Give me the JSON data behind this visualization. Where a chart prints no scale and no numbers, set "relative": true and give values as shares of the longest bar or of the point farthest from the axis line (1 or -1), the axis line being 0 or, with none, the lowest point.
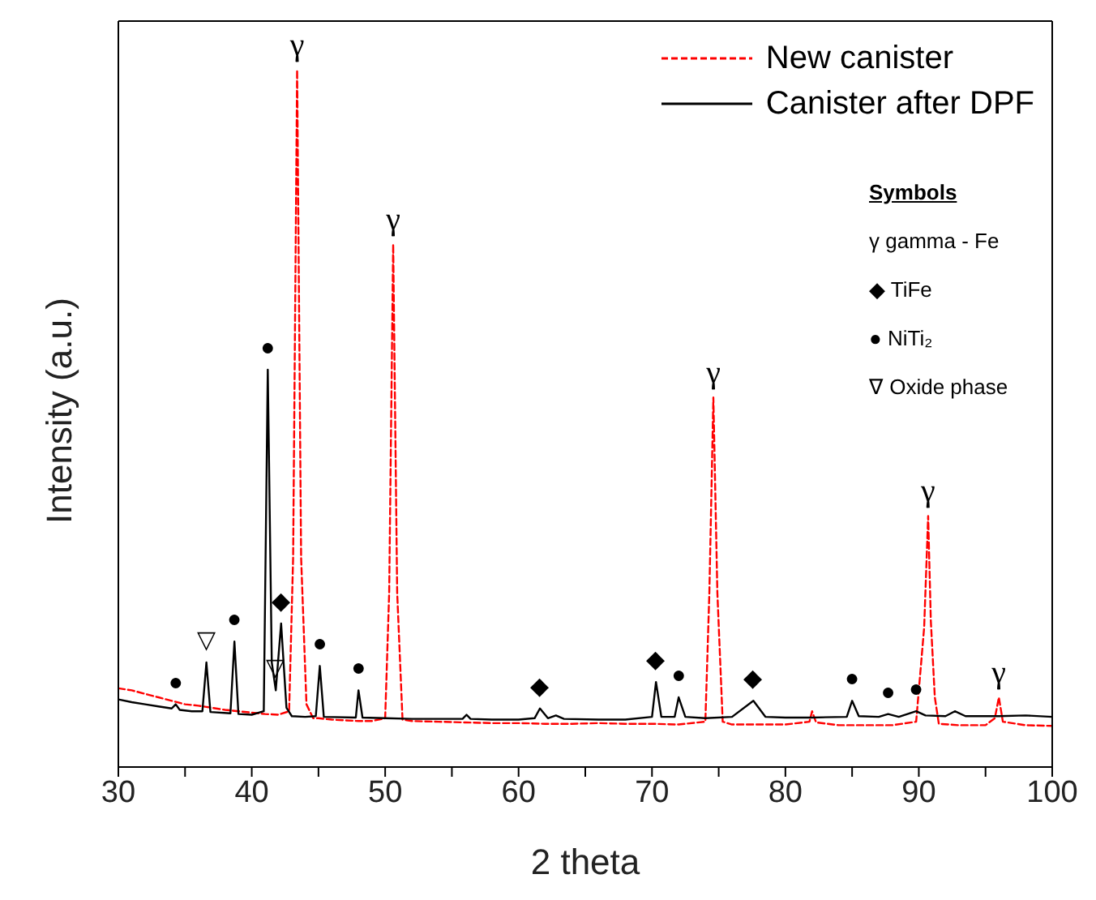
{
  "chart_data": {
    "type": "line",
    "relative": true,
    "xlabel": "2 theta",
    "ylabel": "Intensity (a.u.)",
    "xlim": [
      30,
      100
    ],
    "xticks": [
      30,
      {
        "value": 35,
        "label": null
      },
      40,
      {
        "value": 45,
        "label": null
      },
      50,
      {
        "value": 55,
        "label": null
      },
      60,
      {
        "value": 65,
        "label": null
      },
      70,
      {
        "value": 75,
        "label": null
      },
      80,
      {
        "value": 85,
        "label": null
      },
      90,
      {
        "value": 95,
        "label": null
      },
      100
    ],
    "legend": "top right",
    "marker": "none",
    "series": [
      {
        "name": "New canister",
        "color": "#ff0000",
        "line_style": "dashed",
        "x": [
          30,
          31,
          32,
          33,
          34,
          35,
          36,
          37,
          38,
          39,
          40,
          41,
          42,
          42.8,
          43.1,
          43.4,
          43.7,
          44.1,
          44.6,
          45,
          46,
          47,
          48,
          49,
          50,
          50.3,
          50.6,
          50.9,
          51.3,
          52,
          54,
          56,
          58,
          60,
          62,
          64,
          66,
          68,
          70,
          72,
          74,
          74.3,
          74.6,
          74.9,
          75.3,
          76,
          78,
          80,
          81.8,
          82,
          82.3,
          84,
          86,
          88,
          89.8,
          90.4,
          90.7,
          90.9,
          91.2,
          91.5,
          93,
          95,
          95.7,
          96.0,
          96.3,
          98,
          100
        ],
        "values": [
          0.113,
          0.11,
          0.105,
          0.1,
          0.095,
          0.09,
          0.088,
          0.085,
          0.082,
          0.08,
          0.078,
          0.076,
          0.075,
          0.08,
          0.3,
          1.0,
          0.3,
          0.09,
          0.07,
          0.07,
          0.068,
          0.067,
          0.066,
          0.066,
          0.07,
          0.25,
          0.75,
          0.25,
          0.068,
          0.066,
          0.065,
          0.064,
          0.063,
          0.063,
          0.062,
          0.062,
          0.063,
          0.062,
          0.062,
          0.061,
          0.065,
          0.25,
          0.53,
          0.25,
          0.065,
          0.061,
          0.061,
          0.061,
          0.065,
          0.08,
          0.064,
          0.06,
          0.06,
          0.06,
          0.065,
          0.2,
          0.36,
          0.21,
          0.1,
          0.062,
          0.06,
          0.06,
          0.07,
          0.1,
          0.065,
          0.06,
          0.059
        ]
      },
      {
        "name": "Canister after DPF",
        "color": "#000000",
        "line_style": "solid",
        "x": [
          30,
          31,
          32,
          33,
          34,
          34.3,
          34.6,
          35.5,
          36.3,
          36.6,
          36.9,
          38.4,
          38.7,
          39,
          40,
          40.9,
          41.2,
          41.5,
          41.8,
          42.2,
          42.6,
          43,
          44,
          44.8,
          45.1,
          45.4,
          47.8,
          48.0,
          48.3,
          50,
          52,
          55.8,
          56.1,
          56.4,
          58,
          60,
          61.2,
          61.6,
          62.2,
          62.8,
          63.4,
          66,
          68,
          70,
          70.3,
          70.7,
          71.7,
          72.0,
          72.5,
          74,
          76,
          77.6,
          78.5,
          80,
          82,
          84.6,
          85,
          85.5,
          87,
          87.7,
          88.5,
          89.8,
          90.5,
          92,
          92.7,
          93.5,
          96,
          98,
          100
        ],
        "values": [
          0.097,
          0.093,
          0.09,
          0.087,
          0.084,
          0.09,
          0.082,
          0.08,
          0.08,
          0.15,
          0.079,
          0.077,
          0.18,
          0.076,
          0.075,
          0.08,
          0.57,
          0.15,
          0.11,
          0.206,
          0.085,
          0.073,
          0.072,
          0.073,
          0.145,
          0.072,
          0.071,
          0.11,
          0.071,
          0.07,
          0.069,
          0.069,
          0.075,
          0.069,
          0.068,
          0.068,
          0.07,
          0.084,
          0.07,
          0.074,
          0.069,
          0.068,
          0.068,
          0.072,
          0.122,
          0.072,
          0.072,
          0.1,
          0.072,
          0.07,
          0.072,
          0.095,
          0.072,
          0.071,
          0.071,
          0.072,
          0.095,
          0.073,
          0.072,
          0.076,
          0.072,
          0.08,
          0.074,
          0.073,
          0.08,
          0.073,
          0.073,
          0.074,
          0.072
        ]
      }
    ],
    "annotations": [
      "Symbols",
      "γ gamma - Fe",
      "◆ TiFe",
      "● NiTi₂",
      "∇ Oxide phase",
      {
        "text": "●",
        "x": 34.3,
        "y": 0.09
      },
      {
        "text": "▽",
        "x": 36.6,
        "y": 0.15
      },
      {
        "text": "●",
        "x": 38.7,
        "y": 0.18
      },
      {
        "text": "●",
        "x": 41.2,
        "y": 0.57
      },
      {
        "text": "▽",
        "x": 41.8,
        "y": 0.11
      },
      {
        "text": "◆",
        "x": 42.2,
        "y": 0.206
      },
      {
        "text": "γ",
        "x": 43.4,
        "y": 1.0
      },
      {
        "text": "●",
        "x": 45.1,
        "y": 0.145
      },
      {
        "text": "●",
        "x": 48.0,
        "y": 0.11
      },
      {
        "text": "γ",
        "x": 50.6,
        "y": 0.75
      },
      {
        "text": "◆",
        "x": 61.6,
        "y": 0.084
      },
      {
        "text": "◆",
        "x": 70.3,
        "y": 0.122
      },
      {
        "text": "●",
        "x": 72.0,
        "y": 0.1
      },
      {
        "text": "γ",
        "x": 74.6,
        "y": 0.53
      },
      {
        "text": "◆",
        "x": 77.6,
        "y": 0.095
      },
      {
        "text": "●",
        "x": 85.0,
        "y": 0.095
      },
      {
        "text": "●",
        "x": 87.7,
        "y": 0.076
      },
      {
        "text": "●",
        "x": 89.8,
        "y": 0.08
      },
      {
        "text": "γ",
        "x": 90.7,
        "y": 0.36
      },
      {
        "text": "γ",
        "x": 96.0,
        "y": 0.1
      }
    ]
  }
}
